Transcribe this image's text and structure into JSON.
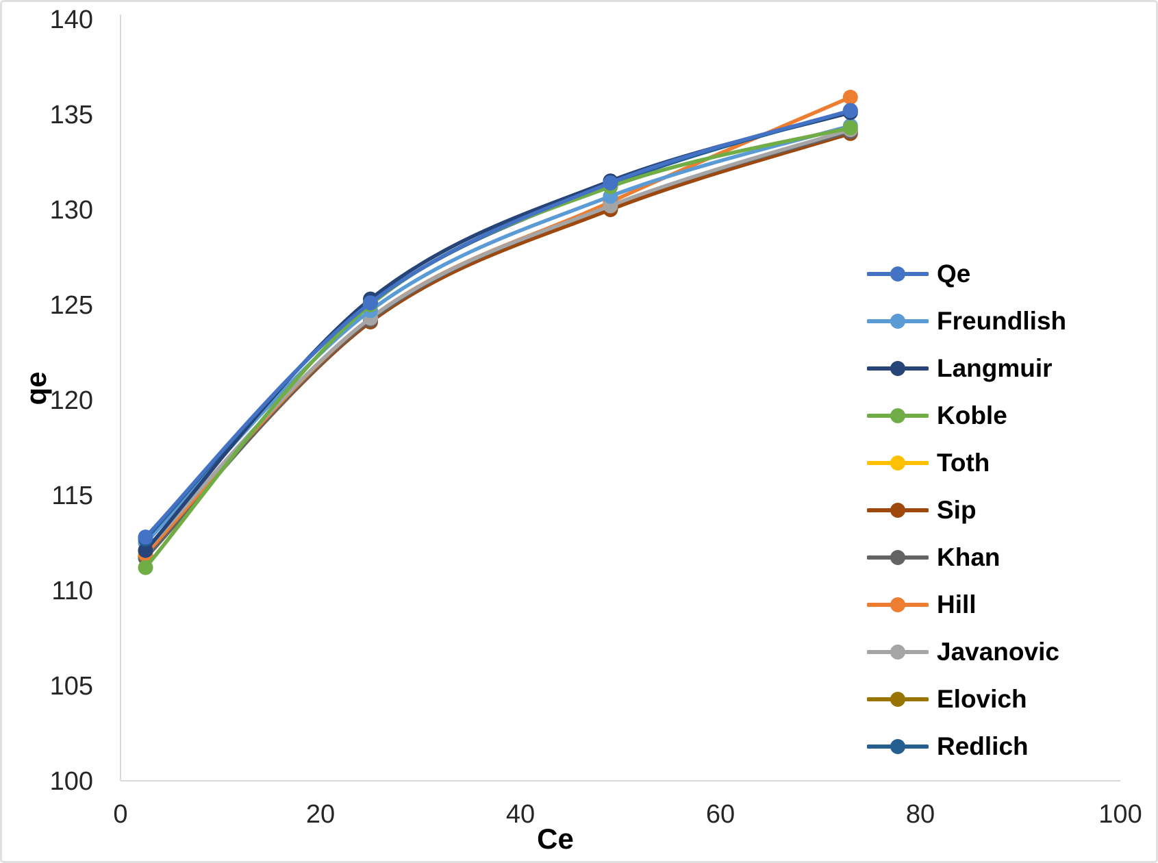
{
  "chart_data": {
    "type": "line",
    "title": "",
    "xlabel": "Ce",
    "ylabel": "qe",
    "xlim": [
      0,
      100
    ],
    "ylim": [
      100,
      140
    ],
    "xticks": [
      0,
      20,
      40,
      60,
      80,
      100
    ],
    "yticks": [
      100,
      105,
      110,
      115,
      120,
      125,
      130,
      135,
      140
    ],
    "grid": false,
    "legend_position": "right",
    "line_style": "smooth",
    "marker": "circle",
    "x": [
      2.5,
      25,
      49,
      73
    ],
    "series": [
      {
        "name": "Qe",
        "color": "#4472C4",
        "values": [
          112.8,
          125.1,
          131.4,
          135.2
        ]
      },
      {
        "name": "Freundlish",
        "color": "#5B9BD5",
        "values": [
          112.5,
          124.7,
          130.7,
          134.4
        ]
      },
      {
        "name": "Langmuir",
        "color": "#264478",
        "values": [
          112.1,
          125.3,
          131.5,
          135.1
        ]
      },
      {
        "name": "Koble",
        "color": "#70AD47",
        "values": [
          111.2,
          125.0,
          131.2,
          134.3
        ]
      },
      {
        "name": "Toth",
        "color": "#FFC000",
        "values": [
          111.8,
          124.2,
          130.1,
          134.1
        ]
      },
      {
        "name": "Sip",
        "color": "#9E480E",
        "values": [
          111.8,
          124.1,
          130.0,
          134.0
        ]
      },
      {
        "name": "Khan",
        "color": "#636363",
        "values": [
          111.7,
          124.2,
          130.2,
          134.1
        ]
      },
      {
        "name": "Hill",
        "color": "#ED7D31",
        "values": [
          111.9,
          124.3,
          130.4,
          135.9
        ]
      },
      {
        "name": "Javanovic",
        "color": "#A5A5A5",
        "values": [
          112.1,
          124.3,
          130.2,
          134.2
        ]
      },
      {
        "name": "Elovich",
        "color": "#997300",
        "values": [
          111.8,
          124.2,
          130.1,
          134.1
        ]
      },
      {
        "name": "Redlich",
        "color": "#255E91",
        "values": [
          112.7,
          125.1,
          131.3,
          135.2
        ]
      }
    ],
    "draw_order": [
      "Toth",
      "Elovich",
      "Sip",
      "Khan",
      "Hill",
      "Javanovic",
      "Freundlish",
      "Langmuir",
      "Redlich",
      "Koble",
      "Qe"
    ]
  },
  "style": {
    "axis_line_color": "#d9d9d9",
    "tick_label_color": "#262626",
    "line_width": 5.5,
    "marker_radius": 11
  }
}
